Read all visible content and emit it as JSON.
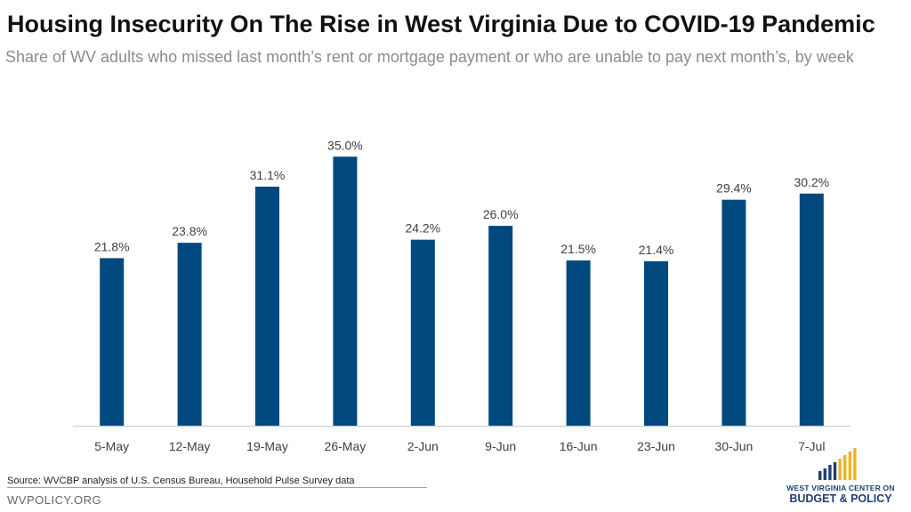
{
  "title": "Housing Insecurity On The Rise in West Virginia Due to COVID-19 Pandemic",
  "subtitle": "Share of WV adults who missed last month’s rent or mortgage payment or who are unable to pay next month’s, by week",
  "source": "Source: WVCBP analysis of U.S. Census Bureau, Household Pulse Survey data",
  "footer_url": "WVPOLICY.ORG",
  "logo": {
    "line1": "WEST VIRGINIA CENTER ON",
    "line2": "BUDGET & POLICY",
    "bar_colors": [
      "#1f3f74",
      "#f0b323"
    ]
  },
  "colors": {
    "bar": "#00497f",
    "axis": "#d0d0d0",
    "text": "#404040"
  },
  "chart_data": {
    "type": "bar",
    "title": "Housing Insecurity On The Rise in West Virginia Due to COVID-19 Pandemic",
    "subtitle": "Share of WV adults who missed last month’s rent or mortgage payment or who are unable to pay next month’s, by week",
    "categories": [
      "5-May",
      "12-May",
      "19-May",
      "26-May",
      "2-Jun",
      "9-Jun",
      "16-Jun",
      "23-Jun",
      "30-Jun",
      "7-Jul"
    ],
    "values": [
      21.8,
      23.8,
      31.1,
      35.0,
      24.2,
      26.0,
      21.5,
      21.4,
      29.4,
      30.2
    ],
    "data_labels": [
      "21.8%",
      "23.8%",
      "31.1%",
      "35.0%",
      "24.2%",
      "26.0%",
      "21.5%",
      "21.4%",
      "29.4%",
      "30.2%"
    ],
    "xlabel": "",
    "ylabel": "",
    "ylim": [
      0,
      40
    ],
    "grid": false,
    "legend": "none"
  }
}
